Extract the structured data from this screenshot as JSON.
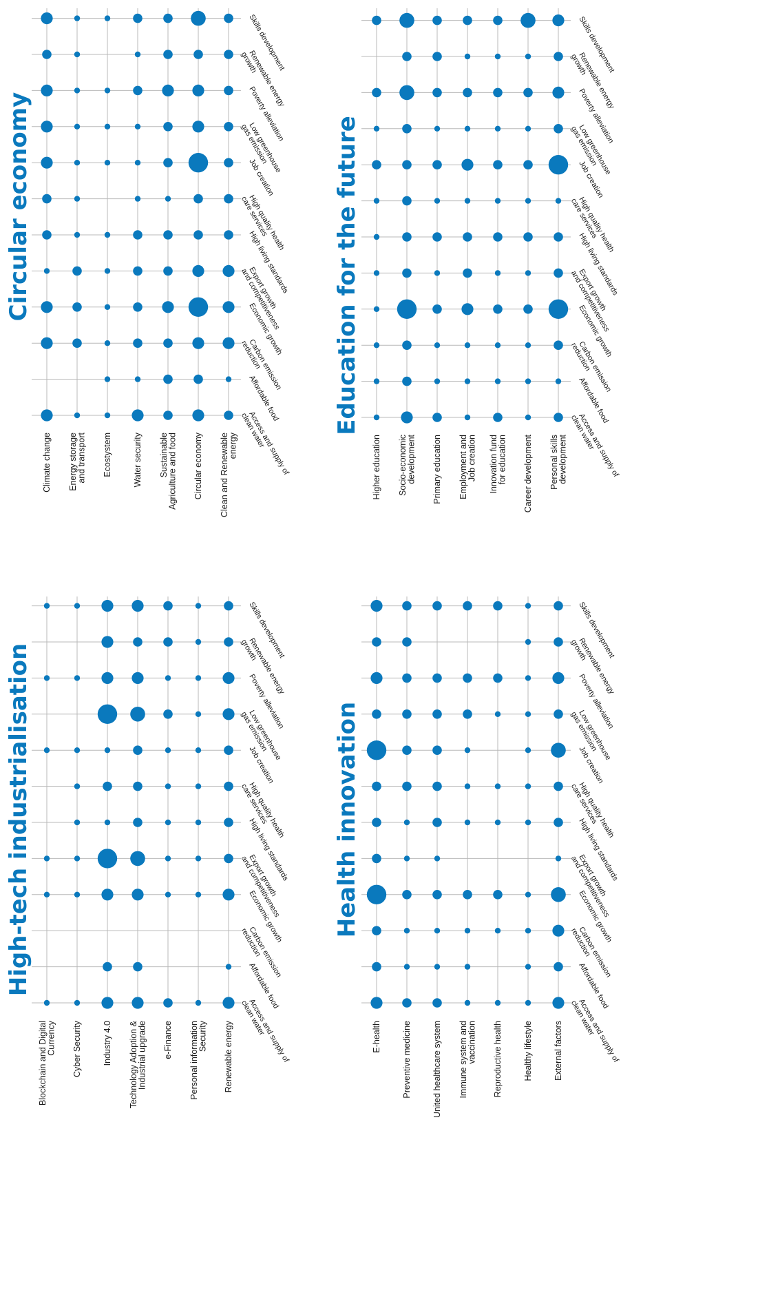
{
  "colors": {
    "accent": "#0a79bd",
    "grid": "#b8b8b8",
    "text": "#1a1a1a"
  },
  "chart_data": [
    {
      "type": "scatter",
      "title": "High-tech industrialisation",
      "x_categories": [
        "Access and supply of clean water",
        "Affordable food",
        "Carbon emission reduction",
        "Economic growth",
        "Export growth and competitiveness",
        "High living standards",
        "High quality health care services",
        "Job creation",
        "Low greenhouse gas emission",
        "Poverty alleviation",
        "Renewable energy growth",
        "Skills development"
      ],
      "y_categories": [
        "Blockchain and Digital Currency",
        "Cyber Security",
        "Industry 4.0",
        "Technology Adoption & Industrial upgrade",
        "e-Finance",
        "Personal information Security",
        "Renewable energy"
      ],
      "grid": true,
      "value_scale": "bubble size 0-5",
      "values": [
        [
          1,
          0,
          0,
          1,
          1,
          0,
          0,
          1,
          0,
          1,
          0,
          1
        ],
        [
          1,
          0,
          0,
          1,
          1,
          1,
          1,
          1,
          0,
          1,
          0,
          1
        ],
        [
          3,
          2,
          0,
          3,
          5,
          1,
          2,
          1,
          5,
          3,
          3,
          3
        ],
        [
          3,
          2,
          0,
          3,
          4,
          2,
          2,
          2,
          4,
          3,
          2,
          3
        ],
        [
          2,
          0,
          0,
          1,
          1,
          1,
          1,
          1,
          2,
          1,
          2,
          2
        ],
        [
          1,
          0,
          0,
          1,
          1,
          1,
          1,
          1,
          1,
          1,
          1,
          1
        ],
        [
          3,
          1,
          0,
          3,
          2,
          2,
          2,
          2,
          3,
          3,
          2,
          2
        ]
      ]
    },
    {
      "type": "scatter",
      "title": "Circular economy",
      "x_categories": [
        "Access and supply of clean water",
        "Affordable food",
        "Carbon emission reduction",
        "Economic growth",
        "Export growth and competitiveness",
        "High living standards",
        "High quality health care services",
        "Job creation",
        "Low greenhouse gas emission",
        "Poverty alleviation",
        "Renewable energy growth",
        "Skills development"
      ],
      "y_categories": [
        "Climate change",
        "Energy storage and transport",
        "Ecostystem",
        "Water security",
        "Sustainable Agriculture and food",
        "Circular economy",
        "Clean and Renewable energy"
      ],
      "grid": true,
      "value_scale": "bubble size 0-5",
      "values": [
        [
          3,
          0,
          3,
          3,
          1,
          2,
          2,
          3,
          3,
          3,
          2,
          3
        ],
        [
          1,
          0,
          2,
          2,
          2,
          1,
          1,
          1,
          1,
          1,
          1,
          1
        ],
        [
          1,
          1,
          1,
          1,
          1,
          1,
          0,
          1,
          1,
          1,
          0,
          1
        ],
        [
          3,
          1,
          2,
          2,
          2,
          2,
          1,
          1,
          1,
          2,
          1,
          2
        ],
        [
          2,
          2,
          2,
          3,
          2,
          2,
          1,
          2,
          2,
          3,
          2,
          2
        ],
        [
          3,
          2,
          3,
          5,
          3,
          2,
          2,
          5,
          3,
          3,
          2,
          4
        ],
        [
          2,
          1,
          3,
          3,
          3,
          2,
          2,
          2,
          2,
          2,
          2,
          2
        ]
      ]
    },
    {
      "type": "scatter",
      "title": "Health innovation",
      "x_categories": [
        "Access and supply of clean water",
        "Affordable food",
        "Carbon emission reduction",
        "Economic growth",
        "Export growth and competitiveness",
        "High living standards",
        "High quality health care services",
        "Job creation",
        "Low greenhouse gas emission",
        "Poverty alleviation",
        "Renewable energy growth",
        "Skills development"
      ],
      "y_categories": [
        "E-health",
        "Preventive medicine",
        "United healthcare system",
        "Immune system and vaccination",
        "Reproductive health",
        "Healthy lifestyle",
        "External factors"
      ],
      "grid": true,
      "value_scale": "bubble size 0-5",
      "values": [
        [
          3,
          2,
          2,
          5,
          2,
          2,
          2,
          5,
          2,
          3,
          2,
          3
        ],
        [
          2,
          1,
          1,
          2,
          1,
          1,
          2,
          2,
          2,
          2,
          2,
          2
        ],
        [
          2,
          1,
          1,
          2,
          1,
          2,
          2,
          2,
          2,
          2,
          0,
          2
        ],
        [
          1,
          1,
          1,
          2,
          0,
          1,
          1,
          1,
          2,
          2,
          0,
          2
        ],
        [
          1,
          0,
          1,
          2,
          0,
          1,
          1,
          0,
          1,
          2,
          0,
          2
        ],
        [
          1,
          1,
          1,
          1,
          0,
          1,
          1,
          1,
          1,
          1,
          1,
          1
        ],
        [
          3,
          2,
          3,
          4,
          1,
          2,
          2,
          4,
          2,
          3,
          2,
          2
        ]
      ]
    },
    {
      "type": "scatter",
      "title": "Education for the future",
      "x_categories": [
        "Access and supply of clean water",
        "Affordable food",
        "Carbon emission reduction",
        "Economic growth",
        "Export growth and competitiveness",
        "High living standards",
        "High quality health care services",
        "Job creation",
        "Low greenhouse gas emission",
        "Poverty alleviation",
        "Renewable energy growth",
        "Skills development"
      ],
      "y_categories": [
        "Higher education",
        "Socio-economic development",
        "Primary education",
        "Employment and Job creation",
        "Innovation fund for education",
        "Career development",
        "Personal skills development"
      ],
      "grid": true,
      "value_scale": "bubble size 0-5",
      "values": [
        [
          1,
          1,
          1,
          1,
          1,
          1,
          1,
          2,
          1,
          2,
          0,
          2
        ],
        [
          3,
          2,
          2,
          5,
          2,
          2,
          2,
          2,
          2,
          4,
          2,
          4
        ],
        [
          2,
          1,
          1,
          2,
          1,
          2,
          1,
          2,
          1,
          2,
          2,
          2
        ],
        [
          1,
          1,
          1,
          3,
          2,
          2,
          1,
          3,
          1,
          2,
          1,
          2
        ],
        [
          2,
          1,
          1,
          2,
          1,
          2,
          1,
          2,
          1,
          2,
          1,
          2
        ],
        [
          1,
          1,
          1,
          2,
          1,
          2,
          1,
          2,
          1,
          2,
          1,
          4
        ],
        [
          2,
          1,
          2,
          5,
          2,
          2,
          1,
          5,
          2,
          3,
          2,
          3
        ]
      ]
    }
  ]
}
